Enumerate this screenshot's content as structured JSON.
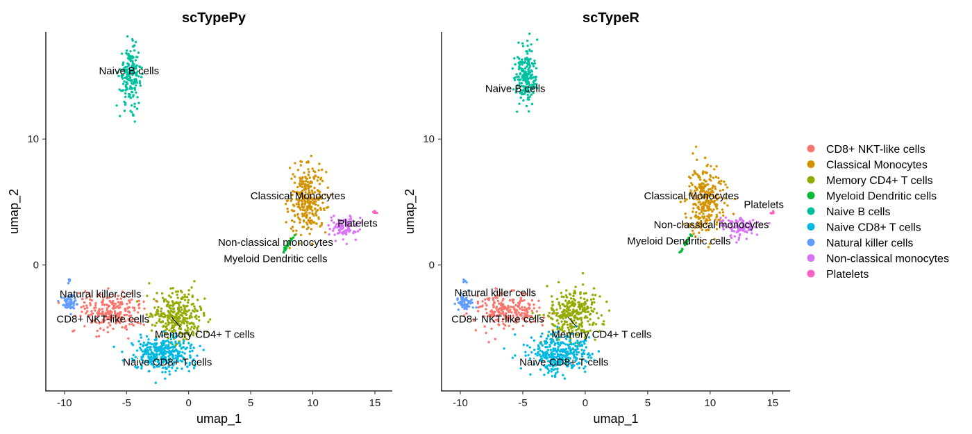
{
  "chart_data": [
    {
      "type": "scatter",
      "title": "scTypePy",
      "xlabel": "umap_1",
      "ylabel": "umap_2",
      "xlim": [
        -11.5,
        16.4
      ],
      "ylim": [
        -10,
        18.5
      ],
      "xticks": [
        -10,
        -5,
        0,
        5,
        10,
        15
      ],
      "yticks": [
        0,
        10
      ],
      "grid": false,
      "labels": [
        {
          "text": "Naive B cells",
          "x": -4.8,
          "y": 15.4
        },
        {
          "text": "Classical Monocytes",
          "x": 8.8,
          "y": 5.5
        },
        {
          "text": "Platelets",
          "x": 13.6,
          "y": 3.3
        },
        {
          "text": "Non-classical monocytes",
          "x": 7.0,
          "y": 1.8
        },
        {
          "text": "Myeloid Dendritic cells",
          "x": 7.0,
          "y": 0.5
        },
        {
          "text": "Natural killer  cells",
          "x": -7.1,
          "y": -2.3
        },
        {
          "text": "CD8+ NKT-like cells",
          "x": -6.9,
          "y": -4.3
        },
        {
          "text": "Memory CD4+ T cells",
          "x": 1.3,
          "y": -5.5
        },
        {
          "text": "Naive CD8+ T cells",
          "x": -1.7,
          "y": -7.7
        }
      ]
    },
    {
      "type": "scatter",
      "title": "scTypeR",
      "xlabel": "umap_1",
      "ylabel": "umap_2",
      "xlim": [
        -11.5,
        16.4
      ],
      "ylim": [
        -10,
        18.5
      ],
      "xticks": [
        -10,
        -5,
        0,
        5,
        10,
        15
      ],
      "yticks": [
        0,
        10
      ],
      "grid": false,
      "labels": [
        {
          "text": "Naive B cells",
          "x": -5.6,
          "y": 14.0
        },
        {
          "text": "Classical Monocytes",
          "x": 8.5,
          "y": 5.5
        },
        {
          "text": "Platelets",
          "x": 14.3,
          "y": 4.8
        },
        {
          "text": "Non-classical monocytes",
          "x": 10.1,
          "y": 3.2
        },
        {
          "text": "Myeloid Dendritic cells",
          "x": 7.5,
          "y": 1.9
        },
        {
          "text": "Natural killer  cells",
          "x": -7.2,
          "y": -2.2
        },
        {
          "text": "CD8+ NKT-like cells",
          "x": -7.0,
          "y": -4.3
        },
        {
          "text": "Memory CD4+ T cells",
          "x": 1.3,
          "y": -5.5
        },
        {
          "text": "Naive CD8+ T cells",
          "x": -1.7,
          "y": -7.7
        }
      ]
    }
  ],
  "legend": {
    "placement": "right",
    "items": [
      {
        "label": "CD8+ NKT-like cells",
        "color": "#F8766D"
      },
      {
        "label": "Classical Monocytes",
        "color": "#D39200"
      },
      {
        "label": "Memory CD4+ T cells",
        "color": "#93AA00"
      },
      {
        "label": "Myeloid Dendritic cells",
        "color": "#00BA38"
      },
      {
        "label": "Naive B cells",
        "color": "#00C19F"
      },
      {
        "label": "Naive CD8+ T cells",
        "color": "#00B9E3"
      },
      {
        "label": "Natural killer  cells",
        "color": "#619CFF"
      },
      {
        "label": "Non-classical monocytes",
        "color": "#DB72FB"
      },
      {
        "label": "Platelets",
        "color": "#FF61C3"
      }
    ]
  }
}
